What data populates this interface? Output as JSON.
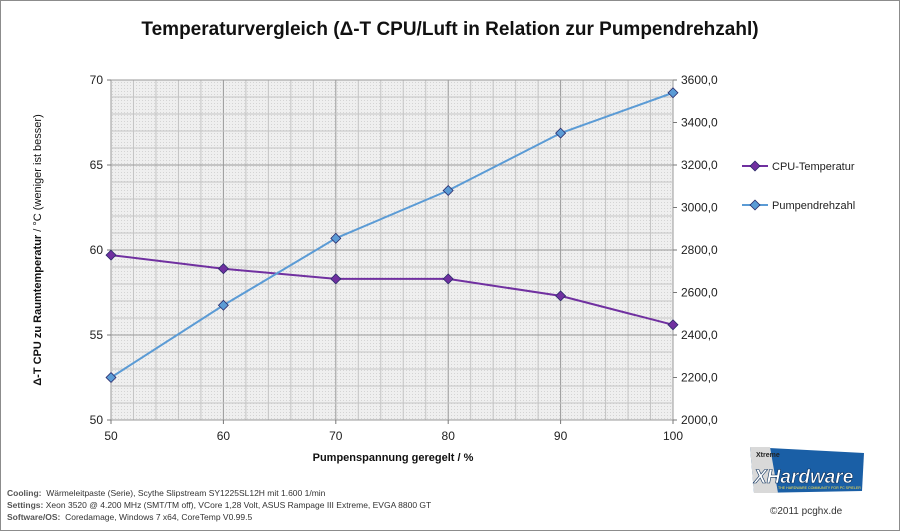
{
  "title": "Temperaturvergleich  (Δ-T CPU/Luft in Relation zur Pumpendrehzahl)",
  "chart_data": {
    "type": "line",
    "x": [
      50,
      60,
      70,
      80,
      90,
      100
    ],
    "xlabel": "Pumpenspannung geregelt / %",
    "xlim": [
      50,
      100
    ],
    "x_ticks": [
      "50",
      "60",
      "70",
      "80",
      "90",
      "100"
    ],
    "ylabel_left_bold": "Δ-T  CPU zu Raumtemperatur",
    "ylabel_left_normal": "  /  °C (weniger ist besser)",
    "ylim_left": [
      50,
      70
    ],
    "y_ticks_left": [
      "50",
      "55",
      "60",
      "65",
      "70"
    ],
    "ylim_right": [
      2000,
      3600
    ],
    "y_ticks_right": [
      "2000,0",
      "2200,0",
      "2400,0",
      "2600,0",
      "2800,0",
      "3000,0",
      "3200,0",
      "3400,0",
      "3600,0"
    ],
    "grid": true,
    "legend_position": "right",
    "series": [
      {
        "name": "CPU-Temperatur",
        "axis": "left",
        "color": "#7030a0",
        "values": [
          59.7,
          58.9,
          58.3,
          58.3,
          57.3,
          55.6
        ]
      },
      {
        "name": "Pumpendrehzahl",
        "axis": "right",
        "color": "#5b9bd5",
        "values": [
          2200,
          2540,
          2855,
          3080,
          3350,
          3540
        ]
      }
    ]
  },
  "footer": {
    "cooling_label": "Cooling:",
    "cooling_value": "Wärmeleitpaste (Serie), Scythe Slipstream SY1225SL12H mit 1.600 1/min",
    "settings_label": "Settings:",
    "settings_value": "Xeon 3520 @ 4.200 MHz (SMT/TM off), VCore 1,28 Volt, ASUS Rampage III Extreme, EVGA 8800 GT",
    "software_label": "Software/OS:",
    "software_value": "Coredamage, Windows 7 x64, CoreTemp V0.99.5"
  },
  "logo": {
    "small_text": "Xtreme",
    "big_text": "XHardware",
    "tagline": "THE HARDWARE COMMUNITY FOR PC SPIELER",
    "icon": "xtreme-hardware-logo"
  },
  "copyright": "©2011 pcghx.de"
}
